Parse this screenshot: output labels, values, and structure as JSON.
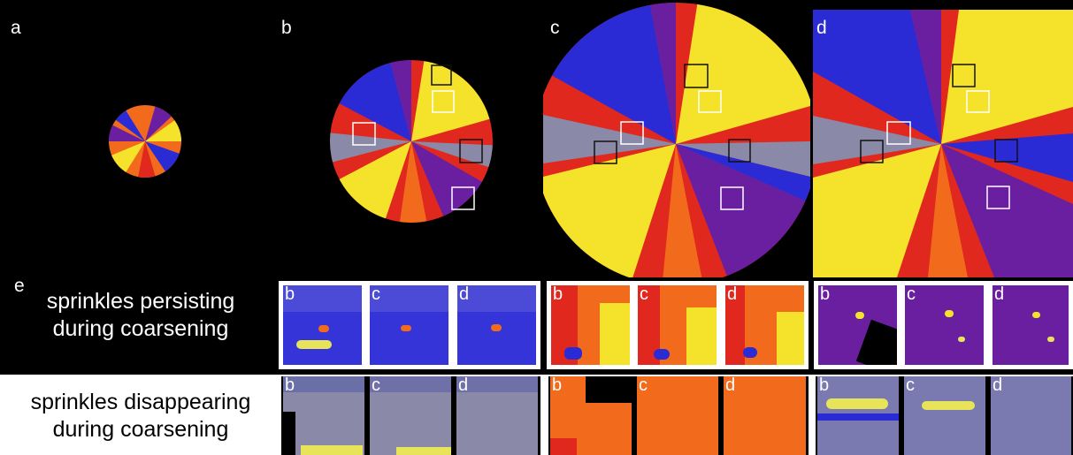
{
  "panels": [
    {
      "label": "a"
    },
    {
      "label": "b"
    },
    {
      "label": "c"
    },
    {
      "label": "d"
    }
  ],
  "section_label": "e",
  "rows": [
    {
      "caption_line1": "sprinkles persisting",
      "caption_line2": "during coarsening",
      "caption_color": "#ffffff",
      "background": "#000000"
    },
    {
      "caption_line1": "sprinkles disappearing",
      "caption_line2": "during coarsening",
      "caption_color": "#000000",
      "background": "#ffffff"
    }
  ],
  "thumb_labels": [
    "b",
    "c",
    "d"
  ],
  "colors": {
    "blue": "#2b2bd6",
    "purple": "#6a1fa0",
    "red": "#e0281e",
    "orange": "#f26a1b",
    "yellow": "#f4e32a",
    "gray": "#8a8aa8"
  }
}
